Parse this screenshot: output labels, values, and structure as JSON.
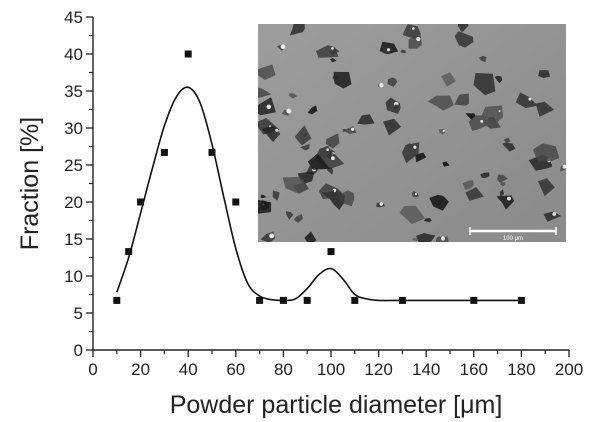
{
  "chart_data": {
    "type": "scatter",
    "xlabel": "Powder particle diameter  [μm]",
    "ylabel": "Fraction  [%]",
    "xlim": [
      0,
      200
    ],
    "ylim": [
      0,
      45
    ],
    "x_ticks": [
      0,
      20,
      40,
      60,
      80,
      100,
      120,
      140,
      160,
      180,
      200
    ],
    "y_ticks": [
      0,
      5,
      10,
      15,
      20,
      25,
      30,
      35,
      40,
      45
    ],
    "grid": false,
    "legend": "none",
    "marker_color": "#111111",
    "series": [
      {
        "kind": "markers",
        "x": [
          10,
          15,
          20,
          30,
          40,
          50,
          60,
          70,
          80,
          90,
          100,
          110,
          130,
          160,
          180
        ],
        "y": [
          6.7,
          13.3,
          20,
          26.7,
          40,
          26.7,
          20,
          6.7,
          6.7,
          6.7,
          13.3,
          6.7,
          6.7,
          6.7,
          6.7
        ]
      },
      {
        "kind": "fit-line",
        "x": [
          10,
          15,
          20,
          25,
          30,
          35,
          40,
          45,
          50,
          55,
          60,
          65,
          70,
          75,
          80,
          85,
          90,
          95,
          100,
          105,
          110,
          115,
          120,
          130,
          140,
          150,
          160,
          170,
          180
        ],
        "y": [
          7.8,
          12.5,
          18.5,
          24.6,
          30.3,
          34.2,
          35.5,
          33.4,
          27.8,
          20.6,
          13.7,
          9.0,
          7.3,
          6.8,
          6.7,
          6.9,
          8.3,
          10.2,
          11.0,
          9.6,
          7.5,
          6.9,
          6.7,
          6.7,
          6.7,
          6.7,
          6.7,
          6.7,
          6.7
        ]
      }
    ],
    "inset": {
      "kind": "micrograph",
      "scale_bar_label": "100 μm"
    }
  }
}
